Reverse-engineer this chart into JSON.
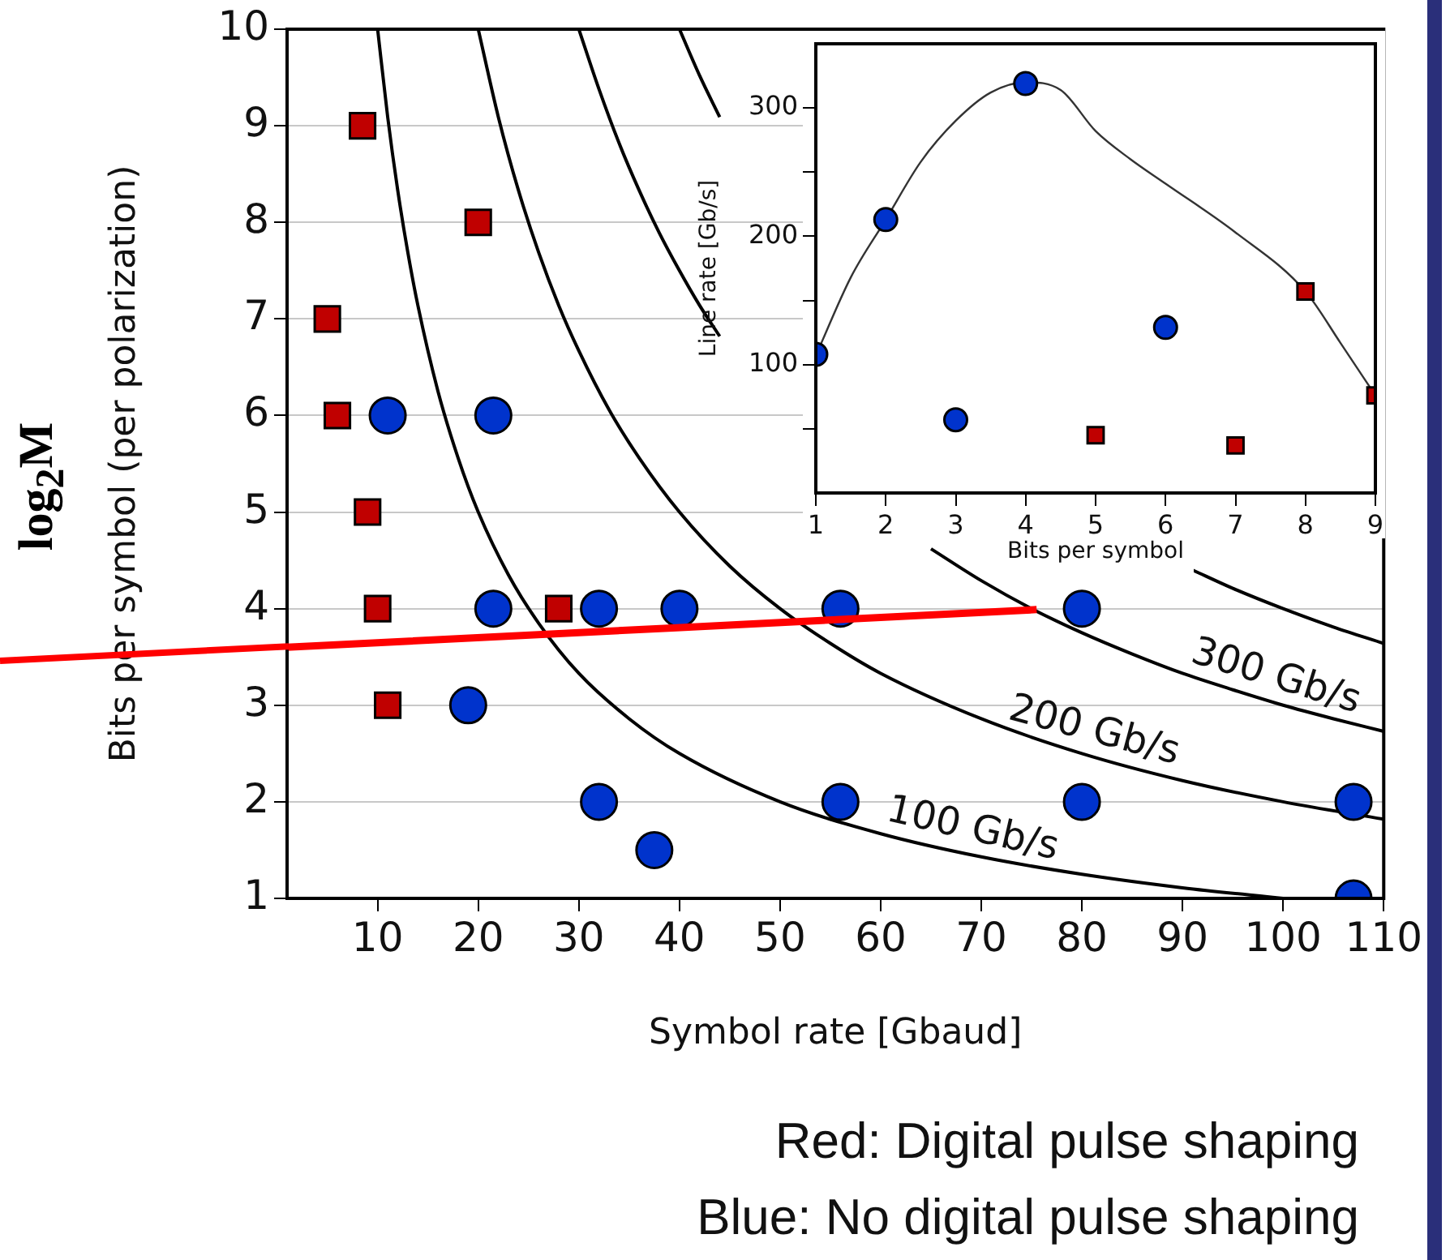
{
  "chart_data": [
    {
      "type": "scatter",
      "xlabel": "Symbol rate [Gbaud]",
      "ylabel": "Bits per symbol (per polarization)",
      "xlim": [
        1,
        110
      ],
      "xticks": [
        10,
        20,
        30,
        40,
        50,
        60,
        70,
        80,
        90,
        100,
        110
      ],
      "ylim": [
        1,
        10
      ],
      "yticks": [
        1,
        2,
        3,
        4,
        5,
        6,
        7,
        8,
        9,
        10
      ],
      "grid": "y",
      "series": [
        {
          "type": "line",
          "name": "100 Gb/s",
          "color": "#000000",
          "marker": "none",
          "x": [
            10,
            11,
            12,
            13,
            14,
            16,
            18,
            20,
            23,
            26,
            30,
            35,
            40,
            50,
            60,
            70,
            80,
            90,
            100
          ],
          "values": [
            10,
            9.09,
            8.33,
            7.69,
            7.14,
            6.25,
            5.56,
            5,
            4.35,
            3.85,
            3.33,
            2.86,
            2.5,
            2,
            1.67,
            1.43,
            1.25,
            1.11,
            1
          ]
        },
        {
          "type": "line",
          "name": "200 Gb/s",
          "color": "#000000",
          "marker": "none",
          "x": [
            20,
            22,
            24,
            26,
            28,
            30,
            33,
            36,
            40,
            45,
            50,
            55,
            60,
            70,
            80,
            90,
            100,
            110
          ],
          "values": [
            10,
            9.09,
            8.33,
            7.69,
            7.14,
            6.67,
            6.06,
            5.56,
            5,
            4.44,
            4,
            3.64,
            3.33,
            2.86,
            2.5,
            2.22,
            2,
            1.82
          ]
        },
        {
          "type": "line",
          "name": "300 Gb/s",
          "color": "#000000",
          "marker": "none",
          "x": [
            30,
            32,
            34,
            36,
            38,
            40,
            42,
            44,
            55,
            65,
            70,
            75,
            80,
            85,
            90,
            95,
            100,
            105,
            110
          ],
          "values": [
            10,
            9.38,
            8.82,
            8.33,
            7.89,
            7.5,
            7.14,
            6.82,
            null,
            4.62,
            4.29,
            4,
            3.75,
            3.53,
            3.33,
            3.16,
            3,
            2.86,
            2.73
          ]
        },
        {
          "type": "line",
          "color": "#000000",
          "marker": "none",
          "x": [
            40,
            42,
            44,
            60,
            91,
            95,
            100,
            105,
            110
          ],
          "values": [
            10,
            9.52,
            9.09,
            null,
            4.4,
            4.21,
            4,
            3.81,
            3.64
          ]
        },
        {
          "type": "scatter",
          "color": "#c00000",
          "marker": "square",
          "x": [
            8.5,
            20,
            5,
            6,
            9,
            10,
            11,
            28
          ],
          "values": [
            9,
            8,
            7,
            6,
            5,
            4,
            3,
            4
          ]
        },
        {
          "type": "line",
          "color": "#ff0000",
          "marker": "none",
          "x": [
            1,
            75.5
          ],
          "values": [
            3.6,
            3.99
          ]
        },
        {
          "type": "scatter",
          "color": "#0033cc",
          "marker": "circle",
          "x": [
            11,
            21.5,
            21.5,
            32,
            40,
            56,
            80,
            19,
            32,
            37.5,
            56,
            80,
            107,
            107
          ],
          "values": [
            6,
            6,
            4,
            4,
            4,
            4,
            4,
            3,
            2,
            1.5,
            2,
            2,
            2,
            1
          ]
        }
      ],
      "annotations": [
        "log$_{2}$M",
        "Red: Digital pulse shaping",
        "Blue: No digital pulse shaping"
      ]
    },
    {
      "type": "scatter",
      "xlabel": "Bits per symbol",
      "ylabel": "Line rate [Gb/s]",
      "xlim": [
        1,
        9
      ],
      "xticks": [
        1,
        2,
        3,
        4,
        5,
        6,
        7,
        8,
        9
      ],
      "ylim": [
        0,
        350
      ],
      "yticks": [
        {
          "value": 50,
          "label": null
        },
        100,
        {
          "value": 150,
          "label": null
        },
        200,
        {
          "value": 250,
          "label": null
        },
        300
      ],
      "series": [
        {
          "type": "line",
          "color": "#333333",
          "marker": "none",
          "x": [
            1,
            1.5,
            2,
            2.5,
            3,
            3.5,
            4,
            4.5,
            5,
            5.5,
            6,
            7,
            8,
            8.5,
            9
          ],
          "values": [
            107,
            168,
            213,
            258,
            290,
            312,
            320,
            314,
            282,
            260,
            241,
            203,
            157,
            117,
            76
          ]
        },
        {
          "type": "scatter",
          "color": "#0033cc",
          "marker": "circle",
          "x": [
            1,
            2,
            3,
            4,
            6
          ],
          "values": [
            108,
            213,
            57,
            319,
            129
          ]
        },
        {
          "type": "scatter",
          "color": "#c00000",
          "marker": "square",
          "x": [
            5,
            7,
            8,
            9
          ],
          "values": [
            45,
            37,
            157,
            76
          ]
        }
      ]
    }
  ]
}
